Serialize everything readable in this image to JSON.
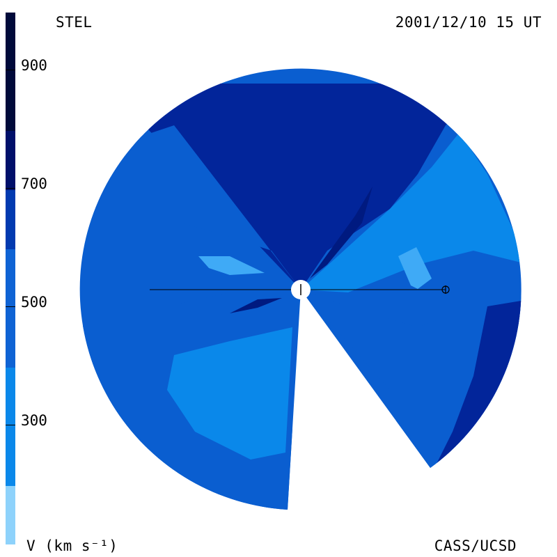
{
  "header": {
    "left_label": "STEL",
    "right_label": "2001/12/10 15 UT"
  },
  "footer": {
    "units_label": "V (km s⁻¹)",
    "credit_label": "CASS/UCSD"
  },
  "colorbar": {
    "ticks": [
      "900",
      "700",
      "500",
      "300"
    ],
    "colors": [
      "#000a3a",
      "#00106a",
      "#023ab0",
      "#0f63d4",
      "#0a88ea",
      "#3eaaf8",
      "#8ed2fb"
    ]
  },
  "palette": {
    "v_dark": "#02259a",
    "v_mid": "#0a5ed0",
    "v_light": "#0a88ea",
    "v_pale": "#3faaf6",
    "v_deep": "#001a80"
  }
}
